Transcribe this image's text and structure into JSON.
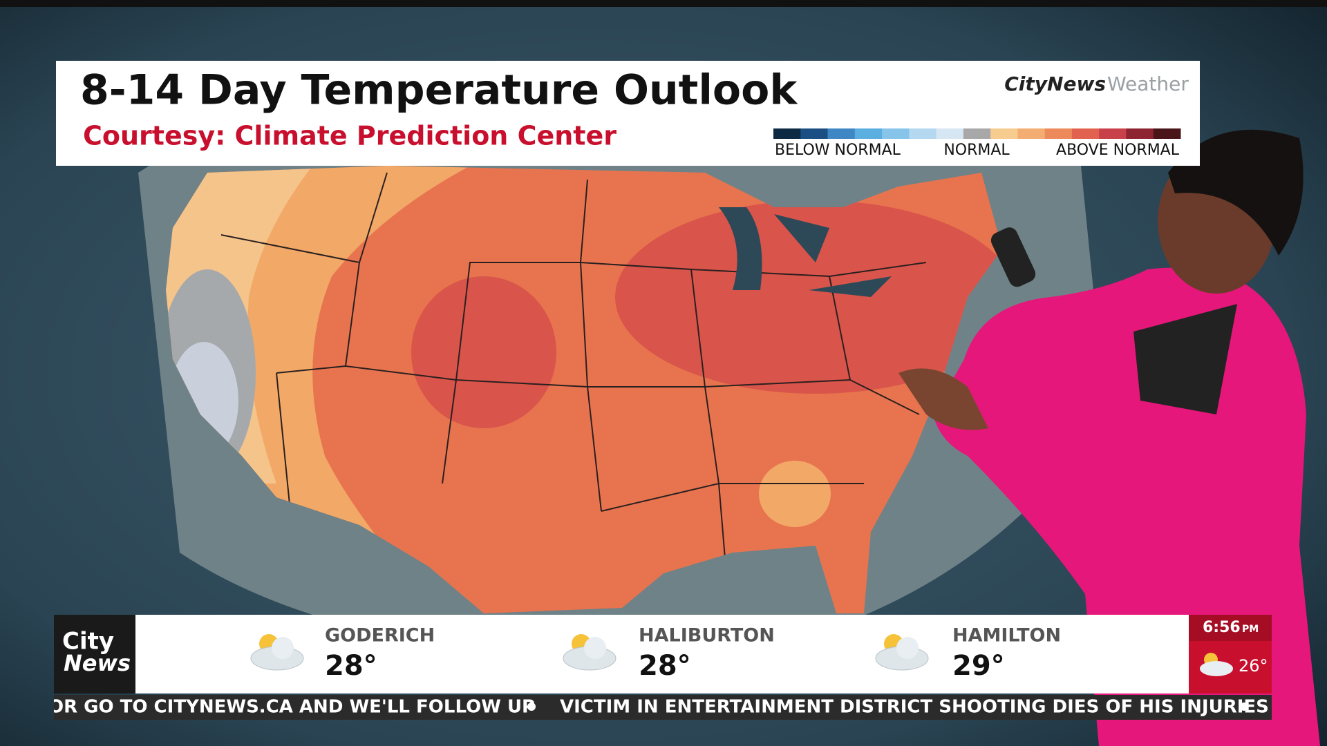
{
  "header": {
    "title": "8-14 Day Temperature Outlook",
    "subtitle": "Courtesy: Climate Prediction Center"
  },
  "brand": {
    "name": "CityNews",
    "product": "Weather"
  },
  "legend": {
    "labels": [
      "BELOW NORMAL",
      "NORMAL",
      "ABOVE NORMAL"
    ]
  },
  "logo": {
    "line1": "City",
    "line2": "News"
  },
  "weather": {
    "items": [
      {
        "city": "GODERICH",
        "temp": "28°"
      },
      {
        "city": "HALIBURTON",
        "temp": "28°"
      },
      {
        "city": "HAMILTON",
        "temp": "29°"
      }
    ]
  },
  "clock": {
    "time": "6:56",
    "suffix": "PM",
    "temp": "26°"
  },
  "ticker": {
    "items": [
      "OR GO TO CITYNEWS.CA AND WE'LL FOLLOW UP",
      "VICTIM IN ENTERTAINMENT DISTRICT SHOOTING DIES OF HIS INJURIES"
    ]
  }
}
